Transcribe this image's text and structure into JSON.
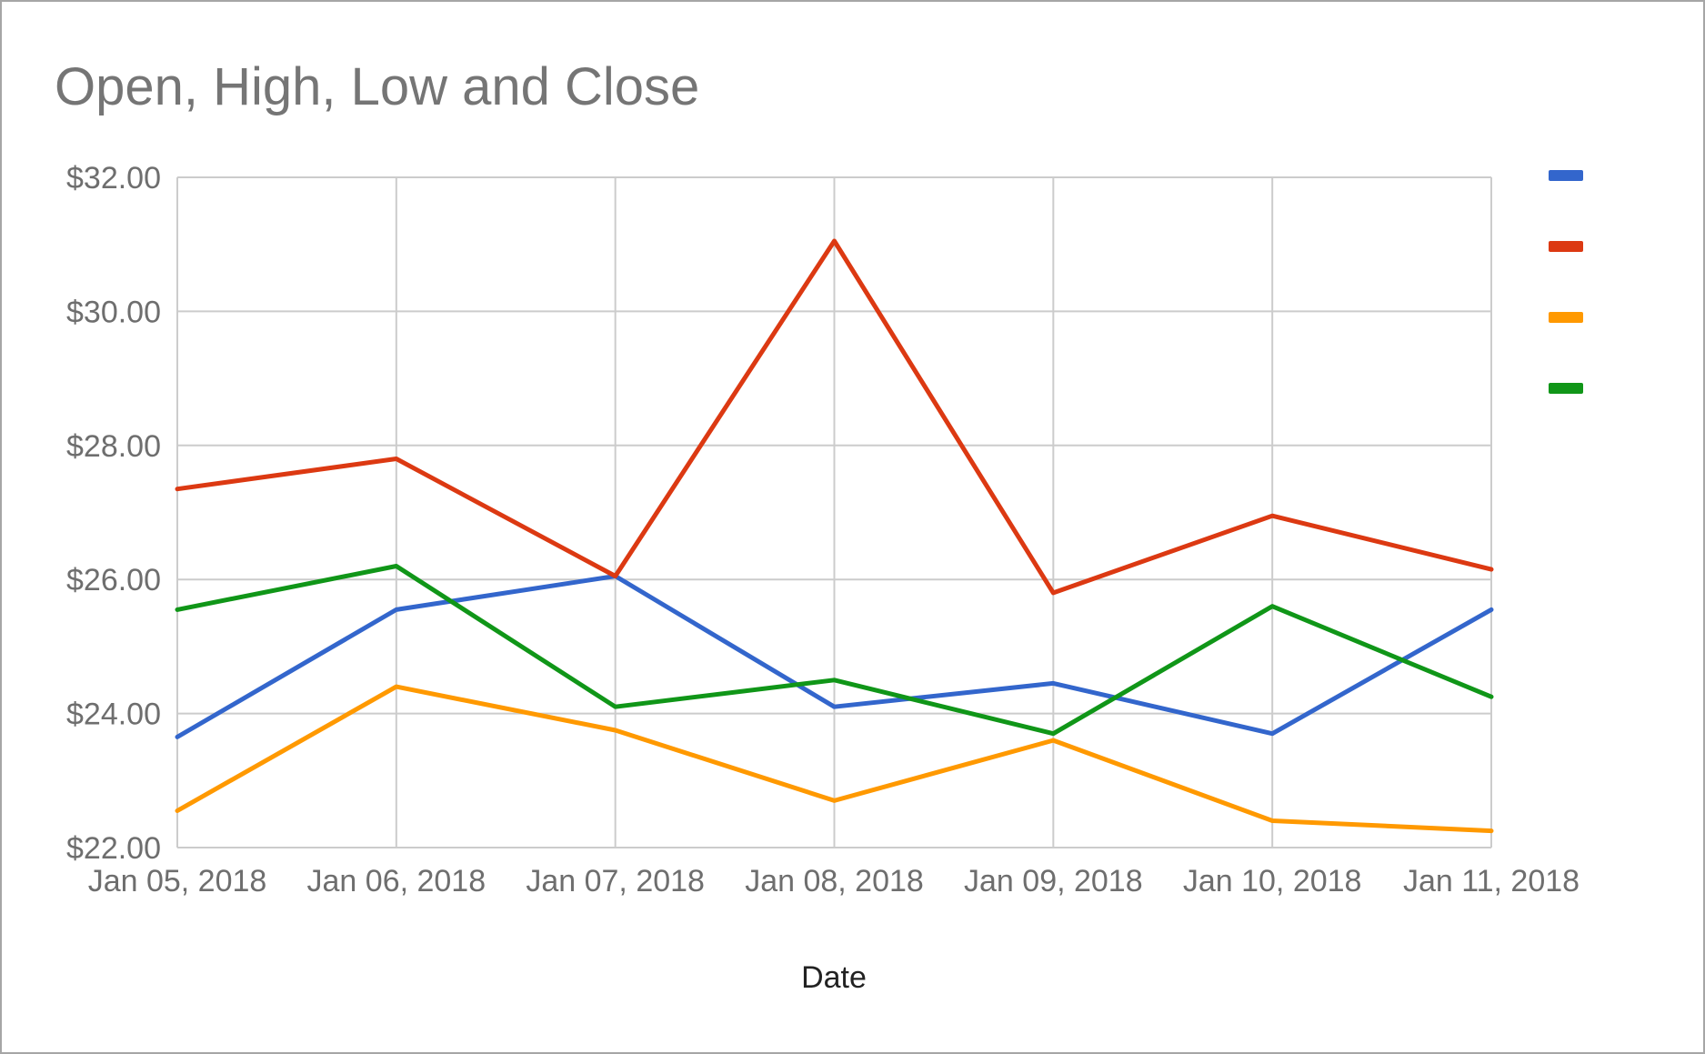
{
  "chart_data": {
    "type": "line",
    "title": "Open, High, Low and Close",
    "xlabel": "Date",
    "ylabel": "",
    "categories": [
      "Jan 05, 2018",
      "Jan 06, 2018",
      "Jan 07, 2018",
      "Jan 08, 2018",
      "Jan 09, 2018",
      "Jan 10, 2018",
      "Jan 11, 2018"
    ],
    "ylim": [
      22,
      32
    ],
    "yticks": [
      22,
      24,
      26,
      28,
      30,
      32
    ],
    "ytick_labels": [
      "$22.00",
      "$24.00",
      "$26.00",
      "$28.00",
      "$30.00",
      "$32.00"
    ],
    "grid": true,
    "legend_position": "right",
    "series": [
      {
        "color": "#3366cc",
        "values": [
          23.65,
          25.55,
          26.05,
          24.1,
          24.45,
          23.7,
          25.55
        ]
      },
      {
        "color": "#dc3912",
        "values": [
          27.35,
          27.8,
          26.05,
          31.05,
          25.8,
          26.95,
          26.15
        ]
      },
      {
        "color": "#ff9900",
        "values": [
          22.55,
          24.4,
          23.75,
          22.7,
          23.6,
          22.4,
          22.25
        ]
      },
      {
        "color": "#109618",
        "values": [
          25.55,
          26.2,
          24.1,
          24.5,
          23.7,
          25.6,
          24.25
        ]
      }
    ]
  }
}
